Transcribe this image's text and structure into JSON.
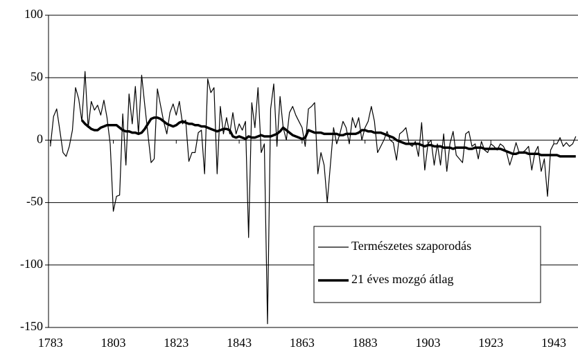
{
  "chart_data": {
    "type": "line",
    "x": [
      1783,
      1784,
      1785,
      1786,
      1787,
      1788,
      1789,
      1790,
      1791,
      1792,
      1793,
      1794,
      1795,
      1796,
      1797,
      1798,
      1799,
      1800,
      1801,
      1802,
      1803,
      1804,
      1805,
      1806,
      1807,
      1808,
      1809,
      1810,
      1811,
      1812,
      1813,
      1814,
      1815,
      1816,
      1817,
      1818,
      1819,
      1820,
      1821,
      1822,
      1823,
      1824,
      1825,
      1826,
      1827,
      1828,
      1829,
      1830,
      1831,
      1832,
      1833,
      1834,
      1835,
      1836,
      1837,
      1838,
      1839,
      1840,
      1841,
      1842,
      1843,
      1844,
      1845,
      1846,
      1847,
      1848,
      1849,
      1850,
      1851,
      1852,
      1853,
      1854,
      1855,
      1856,
      1857,
      1858,
      1859,
      1860,
      1861,
      1862,
      1863,
      1864,
      1865,
      1866,
      1867,
      1868,
      1869,
      1870,
      1871,
      1872,
      1873,
      1874,
      1875,
      1876,
      1877,
      1878,
      1879,
      1880,
      1881,
      1882,
      1883,
      1884,
      1885,
      1886,
      1887,
      1888,
      1889,
      1890,
      1891,
      1892,
      1893,
      1894,
      1895,
      1896,
      1897,
      1898,
      1899,
      1900,
      1901,
      1902,
      1903,
      1904,
      1905,
      1906,
      1907,
      1908,
      1909,
      1910,
      1911,
      1912,
      1913,
      1914,
      1915,
      1916,
      1917,
      1918,
      1919,
      1920,
      1921,
      1922,
      1923,
      1924,
      1925,
      1926,
      1927,
      1928,
      1929,
      1930,
      1931,
      1932,
      1933,
      1934,
      1935,
      1936,
      1937,
      1938,
      1939,
      1940,
      1941,
      1942,
      1943,
      1944,
      1945,
      1946,
      1947,
      1948,
      1949,
      1950
    ],
    "series": [
      {
        "name": "Természetes szaporodás",
        "color": "#000000",
        "width": 1.2,
        "values": [
          -5,
          19,
          25,
          8,
          -10,
          -13,
          -5,
          8,
          42,
          33,
          15,
          55,
          10,
          31,
          24,
          28,
          20,
          32,
          18,
          -3,
          -57,
          -45,
          -44,
          21,
          -20,
          37,
          13,
          43,
          5,
          52,
          28,
          5,
          -18,
          -15,
          41,
          28,
          15,
          5,
          22,
          29,
          20,
          31,
          13,
          16,
          -17,
          -10,
          -10,
          6,
          8,
          -27,
          49,
          38,
          42,
          -27,
          27,
          5,
          18,
          5,
          22,
          5,
          13,
          8,
          15,
          -78,
          30,
          10,
          42,
          -10,
          -3,
          -147,
          25,
          45,
          -5,
          35,
          10,
          0,
          22,
          27,
          20,
          15,
          10,
          -5,
          25,
          27,
          30,
          -27,
          -10,
          -20,
          -50,
          -20,
          10,
          -3,
          5,
          15,
          10,
          -3,
          18,
          10,
          18,
          0,
          10,
          15,
          27,
          15,
          -10,
          -5,
          0,
          7,
          0,
          -2,
          -16,
          5,
          7,
          10,
          -3,
          -5,
          -1,
          -13,
          14,
          -24,
          -3,
          0,
          -20,
          -3,
          -20,
          5,
          -25,
          -3,
          7,
          -12,
          -15,
          -18,
          5,
          7,
          -5,
          -3,
          -15,
          -1,
          -8,
          -10,
          -3,
          -5,
          -8,
          -3,
          -5,
          -10,
          -20,
          -12,
          -2,
          -10,
          -10,
          -8,
          -5,
          -24,
          -10,
          -5,
          -25,
          -15,
          -45,
          -8,
          -3,
          -3,
          2,
          -5,
          -2,
          -5,
          -3,
          3
        ]
      },
      {
        "name": "21 éves mozgó átlag",
        "color": "#000000",
        "width": 3.5,
        "values": [
          null,
          null,
          null,
          null,
          null,
          null,
          null,
          null,
          null,
          null,
          16,
          13,
          11,
          9,
          8,
          8,
          10,
          11,
          12,
          12,
          12,
          12,
          10,
          8,
          7,
          7,
          6,
          6,
          5,
          6,
          9,
          13,
          17,
          18,
          18,
          17,
          15,
          13,
          12,
          11,
          12,
          14,
          15,
          14,
          13,
          13,
          12,
          12,
          11,
          11,
          10,
          9,
          8,
          7,
          8,
          9,
          9,
          8,
          3,
          2,
          3,
          2,
          1,
          3,
          2,
          2,
          3,
          4,
          3,
          3,
          3,
          4,
          5,
          7,
          10,
          8,
          6,
          4,
          3,
          2,
          1,
          2,
          8,
          7,
          6,
          6,
          6,
          5,
          5,
          5,
          5,
          5,
          4,
          4,
          5,
          5,
          5,
          5,
          6,
          8,
          8,
          7,
          7,
          6,
          6,
          6,
          5,
          4,
          3,
          2,
          0,
          -1,
          -2,
          -3,
          -3,
          -3,
          -3,
          -3,
          -4,
          -5,
          -4,
          -4,
          -5,
          -5,
          -5,
          -6,
          -6,
          -6,
          -7,
          -6,
          -6,
          -6,
          -6,
          -7,
          -7,
          -6,
          -6,
          -6,
          -7,
          -7,
          -7,
          -7,
          -7,
          -7,
          -8,
          -9,
          -10,
          -11,
          -11,
          -10,
          -10,
          -10,
          -11,
          -11,
          -11,
          -11,
          -12,
          -12,
          -12,
          -12,
          -12,
          -12,
          -13,
          -13,
          -13,
          -13,
          -13,
          -13
        ]
      }
    ],
    "xlim": [
      1782.4,
      1950.7
    ],
    "xticks": [
      1783,
      1803,
      1823,
      1843,
      1863,
      1883,
      1903,
      1923,
      1943
    ],
    "ylim": [
      -150,
      100
    ],
    "yticks": [
      -150,
      -100,
      -50,
      0,
      50,
      100
    ],
    "grid": true,
    "legend": "lower right"
  }
}
